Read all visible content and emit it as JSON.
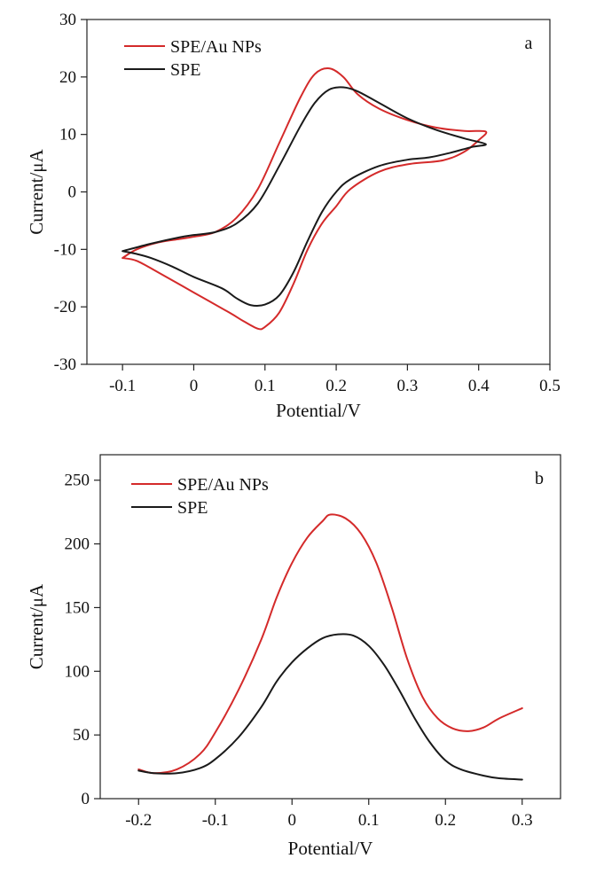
{
  "colors": {
    "red": "#d42a2a",
    "black": "#1a1a1a"
  },
  "chart_data": [
    {
      "type": "line",
      "panel_label": "a",
      "xlabel": "Potential/V",
      "ylabel": "Current/μA",
      "xlim": [
        -0.15,
        0.5
      ],
      "ylim": [
        -30,
        30
      ],
      "xticks": [
        -0.1,
        0,
        0.1,
        0.2,
        0.3,
        0.4,
        0.5
      ],
      "xtick_labels": [
        "-0.1",
        "0",
        "0.1",
        "0.2",
        "0.3",
        "0.4",
        "0.5"
      ],
      "yticks": [
        -30,
        -20,
        -10,
        0,
        10,
        20,
        30
      ],
      "ytick_labels": [
        "-30",
        "-20",
        "-10",
        "0",
        "10",
        "20",
        "30"
      ],
      "legend_position": "top-left",
      "series": [
        {
          "name": "SPE/Au NPs",
          "color": "#d42a2a",
          "points": [
            [
              -0.1,
              -11.5
            ],
            [
              -0.08,
              -10
            ],
            [
              -0.05,
              -8.8
            ],
            [
              -0.02,
              -8.2
            ],
            [
              0.0,
              -7.8
            ],
            [
              0.03,
              -7.0
            ],
            [
              0.06,
              -4.5
            ],
            [
              0.09,
              0.5
            ],
            [
              0.12,
              8.5
            ],
            [
              0.15,
              16.5
            ],
            [
              0.17,
              20.5
            ],
            [
              0.19,
              21.5
            ],
            [
              0.21,
              20.0
            ],
            [
              0.23,
              17.0
            ],
            [
              0.26,
              14.5
            ],
            [
              0.3,
              12.5
            ],
            [
              0.34,
              11.2
            ],
            [
              0.38,
              10.6
            ],
            [
              0.41,
              10.5
            ],
            [
              0.4,
              9.0
            ],
            [
              0.38,
              7.0
            ],
            [
              0.35,
              5.5
            ],
            [
              0.3,
              4.8
            ],
            [
              0.26,
              3.5
            ],
            [
              0.22,
              0.5
            ],
            [
              0.2,
              -2.5
            ],
            [
              0.18,
              -5.5
            ],
            [
              0.16,
              -10.0
            ],
            [
              0.14,
              -16.0
            ],
            [
              0.12,
              -21.0
            ],
            [
              0.1,
              -23.5
            ],
            [
              0.09,
              -23.8
            ],
            [
              0.07,
              -22.5
            ],
            [
              0.05,
              -21.0
            ],
            [
              0.0,
              -17.5
            ],
            [
              -0.05,
              -14.0
            ],
            [
              -0.08,
              -12.0
            ],
            [
              -0.1,
              -11.5
            ]
          ]
        },
        {
          "name": "SPE",
          "color": "#1a1a1a",
          "points": [
            [
              -0.1,
              -10.3
            ],
            [
              -0.06,
              -9.0
            ],
            [
              -0.02,
              -7.9
            ],
            [
              0.0,
              -7.5
            ],
            [
              0.03,
              -7.0
            ],
            [
              0.06,
              -5.5
            ],
            [
              0.09,
              -2.0
            ],
            [
              0.12,
              4.5
            ],
            [
              0.15,
              11.5
            ],
            [
              0.17,
              15.5
            ],
            [
              0.19,
              17.8
            ],
            [
              0.21,
              18.2
            ],
            [
              0.23,
              17.5
            ],
            [
              0.26,
              15.5
            ],
            [
              0.3,
              12.8
            ],
            [
              0.34,
              10.8
            ],
            [
              0.38,
              9.3
            ],
            [
              0.41,
              8.3
            ],
            [
              0.39,
              7.8
            ],
            [
              0.36,
              6.8
            ],
            [
              0.33,
              6.0
            ],
            [
              0.3,
              5.6
            ],
            [
              0.26,
              4.5
            ],
            [
              0.22,
              2.2
            ],
            [
              0.2,
              0.0
            ],
            [
              0.18,
              -3.5
            ],
            [
              0.16,
              -8.5
            ],
            [
              0.14,
              -14.0
            ],
            [
              0.12,
              -18.0
            ],
            [
              0.1,
              -19.6
            ],
            [
              0.08,
              -19.7
            ],
            [
              0.06,
              -18.5
            ],
            [
              0.04,
              -16.8
            ],
            [
              0.0,
              -14.8
            ],
            [
              -0.03,
              -13.0
            ],
            [
              -0.06,
              -11.5
            ],
            [
              -0.08,
              -10.8
            ],
            [
              -0.1,
              -10.3
            ]
          ]
        }
      ]
    },
    {
      "type": "line",
      "panel_label": "b",
      "xlabel": "Potential/V",
      "ylabel": "Current/μA",
      "xlim": [
        -0.25,
        0.35
      ],
      "ylim": [
        0,
        270
      ],
      "xticks": [
        -0.2,
        -0.1,
        0,
        0.1,
        0.2,
        0.3
      ],
      "xtick_labels": [
        "-0.2",
        "-0.1",
        "0",
        "0.1",
        "0.2",
        "0.3"
      ],
      "yticks": [
        0,
        50,
        100,
        150,
        200,
        250
      ],
      "ytick_labels": [
        "0",
        "50",
        "100",
        "150",
        "200",
        "250"
      ],
      "legend_position": "top-left",
      "series": [
        {
          "name": "SPE/Au NPs",
          "color": "#d42a2a",
          "points": [
            [
              -0.2,
              23
            ],
            [
              -0.18,
              20
            ],
            [
              -0.15,
              23
            ],
            [
              -0.12,
              35
            ],
            [
              -0.1,
              52
            ],
            [
              -0.07,
              85
            ],
            [
              -0.04,
              125
            ],
            [
              -0.02,
              158
            ],
            [
              0.0,
              185
            ],
            [
              0.02,
              205
            ],
            [
              0.04,
              218
            ],
            [
              0.05,
              223
            ],
            [
              0.07,
              220
            ],
            [
              0.09,
              208
            ],
            [
              0.11,
              185
            ],
            [
              0.13,
              150
            ],
            [
              0.15,
              110
            ],
            [
              0.17,
              80
            ],
            [
              0.19,
              63
            ],
            [
              0.21,
              55
            ],
            [
              0.23,
              53
            ],
            [
              0.25,
              56
            ],
            [
              0.27,
              63
            ],
            [
              0.3,
              71
            ]
          ]
        },
        {
          "name": "SPE",
          "color": "#1a1a1a",
          "points": [
            [
              -0.2,
              22
            ],
            [
              -0.18,
              20
            ],
            [
              -0.15,
              20
            ],
            [
              -0.12,
              24
            ],
            [
              -0.1,
              31
            ],
            [
              -0.07,
              48
            ],
            [
              -0.04,
              72
            ],
            [
              -0.02,
              92
            ],
            [
              0.0,
              107
            ],
            [
              0.02,
              118
            ],
            [
              0.04,
              126
            ],
            [
              0.06,
              129
            ],
            [
              0.08,
              128
            ],
            [
              0.1,
              120
            ],
            [
              0.12,
              105
            ],
            [
              0.14,
              85
            ],
            [
              0.16,
              63
            ],
            [
              0.18,
              44
            ],
            [
              0.2,
              30
            ],
            [
              0.22,
              23
            ],
            [
              0.25,
              18
            ],
            [
              0.27,
              16
            ],
            [
              0.3,
              15
            ]
          ]
        }
      ]
    }
  ]
}
